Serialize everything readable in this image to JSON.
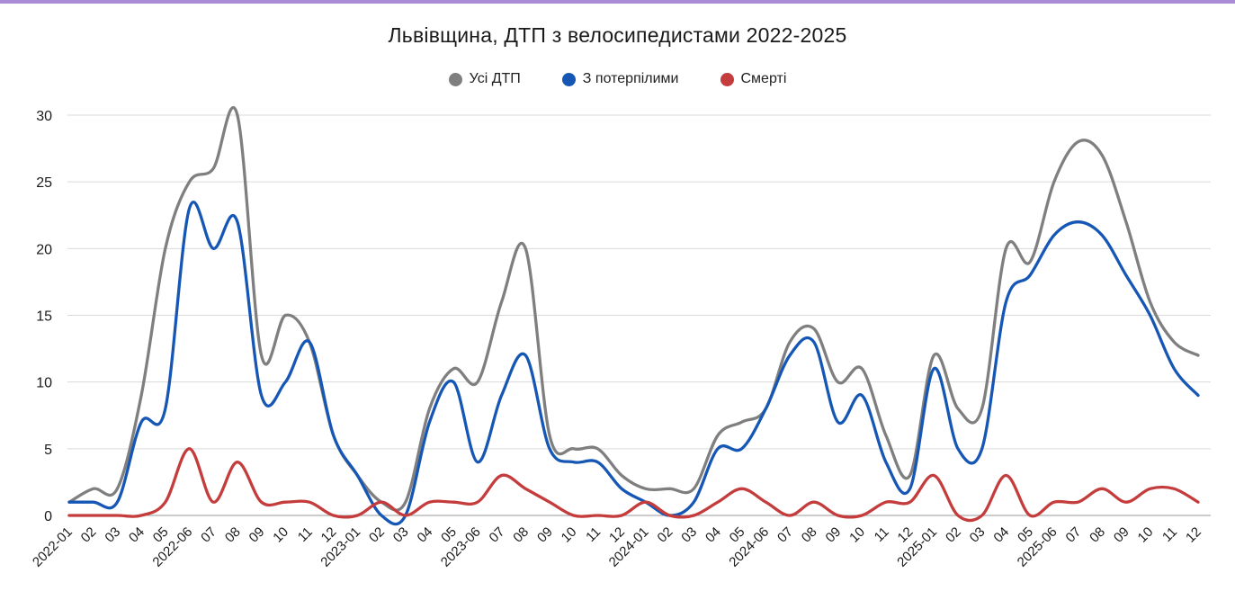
{
  "page": {
    "accent_bar_color": "#a98bd6",
    "background": "#ffffff"
  },
  "chart_data": {
    "type": "line",
    "curve": "smooth",
    "title": "Львівщина, ДТП з велосипедистами 2022-2025",
    "legend_position": "top",
    "grid": true,
    "ylim": [
      0,
      30
    ],
    "y_ticks": [
      0,
      5,
      10,
      15,
      20,
      25,
      30
    ],
    "categories": [
      "2022-01",
      "02",
      "03",
      "04",
      "05",
      "2022-06",
      "07",
      "08",
      "09",
      "10",
      "11",
      "12",
      "2023-01",
      "02",
      "03",
      "04",
      "05",
      "2023-06",
      "07",
      "08",
      "09",
      "10",
      "11",
      "12",
      "2024-01",
      "02",
      "03",
      "04",
      "05",
      "2024-06",
      "07",
      "08",
      "09",
      "10",
      "11",
      "12",
      "2025-01",
      "02",
      "03",
      "04",
      "05",
      "2025-06",
      "07",
      "08",
      "09",
      "10",
      "11",
      "12"
    ],
    "series": [
      {
        "name": "Усі ДТП",
        "color": "#7f7f7f",
        "values": [
          1,
          2,
          2,
          9,
          20,
          25,
          26,
          30,
          12,
          15,
          13,
          6,
          3,
          1,
          1,
          8,
          11,
          10,
          16,
          20,
          6,
          5,
          5,
          3,
          2,
          2,
          2,
          6,
          7,
          8,
          13,
          14,
          10,
          11,
          6,
          3,
          12,
          8,
          8,
          20,
          19,
          25,
          28,
          27,
          22,
          16,
          13,
          12
        ]
      },
      {
        "name": "З потерпілими",
        "color": "#1657b5",
        "values": [
          1,
          1,
          1,
          7,
          8,
          23,
          20,
          22,
          9,
          10,
          13,
          6,
          3,
          0,
          0,
          7,
          10,
          4,
          9,
          12,
          5,
          4,
          4,
          2,
          1,
          0,
          1,
          5,
          5,
          8,
          12,
          13,
          7,
          9,
          4,
          2,
          11,
          5,
          5,
          16,
          18,
          21,
          22,
          21,
          18,
          15,
          11,
          9
        ]
      },
      {
        "name": "Смерті",
        "color": "#c43c3c",
        "values": [
          0,
          0,
          0,
          0,
          1,
          5,
          1,
          4,
          1,
          1,
          1,
          0,
          0,
          1,
          0,
          1,
          1,
          1,
          3,
          2,
          1,
          0,
          0,
          0,
          1,
          0,
          0,
          1,
          2,
          1,
          0,
          1,
          0,
          0,
          1,
          1,
          3,
          0,
          0,
          3,
          0,
          1,
          1,
          2,
          1,
          2,
          2,
          1
        ]
      }
    ],
    "grid_color": "#d9d9d9",
    "baseline_color": "#9a9a9a",
    "label_color": "#1a1a1a"
  }
}
